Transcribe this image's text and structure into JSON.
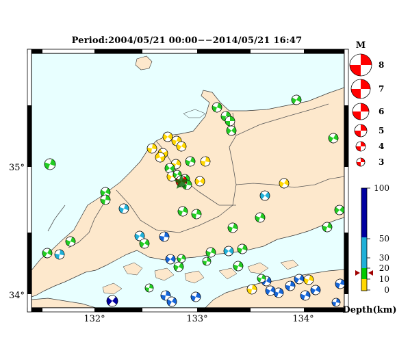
{
  "title": "Period:2004/05/21 00:00−−2014/05/21 16:47",
  "axes": {
    "lon_ticks": [
      "132°",
      "133°",
      "134°"
    ],
    "lat_ticks": [
      "35°",
      "34°"
    ]
  },
  "colors": {
    "sea": "#e8ffff",
    "land": "#fde8cc",
    "border": "#555555",
    "compression_default": "#ff0000"
  },
  "magnitude_legend": {
    "title": "M",
    "entries": [
      "8",
      "7",
      "6",
      "5",
      "4",
      "3"
    ],
    "color": "#ff0000"
  },
  "depth_legend": {
    "title": "Depth(km)",
    "ticks": [
      "100",
      "50",
      "30",
      "20",
      "10",
      "0"
    ],
    "colors": [
      "#ffd700",
      "#00c800",
      "#20b0d8",
      "#1060d0",
      "#0000a0"
    ]
  },
  "marker_colors": {
    "yellow": "#ffd700",
    "green": "#22cc22",
    "cyan": "#20b0d8",
    "blue": "#1565d8",
    "navy": "#0000a0",
    "red": "#ff0000"
  },
  "mechanisms": [
    {
      "c": "green"
    },
    {
      "c": "green"
    },
    {
      "c": "green"
    },
    {
      "c": "green"
    },
    {
      "c": "green"
    },
    {
      "c": "green"
    },
    {
      "c": "green"
    },
    {
      "c": "green"
    },
    {
      "c": "cyan"
    },
    {
      "c": "cyan"
    },
    {
      "c": "yellow"
    },
    {
      "c": "yellow"
    },
    {
      "c": "yellow"
    },
    {
      "c": "yellow"
    },
    {
      "c": "yellow"
    },
    {
      "c": "yellow"
    },
    {
      "c": "yellow"
    },
    {
      "c": "yellow"
    },
    {
      "c": "green"
    },
    {
      "c": "green"
    },
    {
      "c": "yellow"
    },
    {
      "c": "yellow"
    },
    {
      "c": "green"
    },
    {
      "c": "green"
    },
    {
      "c": "green"
    },
    {
      "c": "yellow"
    },
    {
      "c": "green"
    },
    {
      "c": "green"
    },
    {
      "c": "green"
    },
    {
      "c": "green"
    },
    {
      "c": "green"
    },
    {
      "c": "green"
    },
    {
      "c": "green"
    },
    {
      "c": "cyan"
    },
    {
      "c": "green"
    },
    {
      "c": "green"
    },
    {
      "c": "cyan"
    },
    {
      "c": "green"
    },
    {
      "c": "green"
    },
    {
      "c": "blue"
    },
    {
      "c": "blue"
    },
    {
      "c": "green"
    },
    {
      "c": "cyan"
    },
    {
      "c": "green"
    },
    {
      "c": "blue"
    },
    {
      "c": "blue"
    },
    {
      "c": "blue"
    },
    {
      "c": "blue"
    },
    {
      "c": "navy"
    },
    {
      "c": "blue"
    },
    {
      "c": "blue"
    },
    {
      "c": "blue"
    },
    {
      "c": "yellow"
    },
    {
      "c": "blue"
    },
    {
      "c": "blue"
    },
    {
      "c": "yellow"
    },
    {
      "c": "blue"
    },
    {
      "c": "blue"
    },
    {
      "c": "blue"
    },
    {
      "c": "green"
    },
    {
      "c": "green"
    },
    {
      "c": "green"
    },
    {
      "c": "green"
    },
    {
      "c": "green"
    },
    {
      "c": "red"
    }
  ]
}
